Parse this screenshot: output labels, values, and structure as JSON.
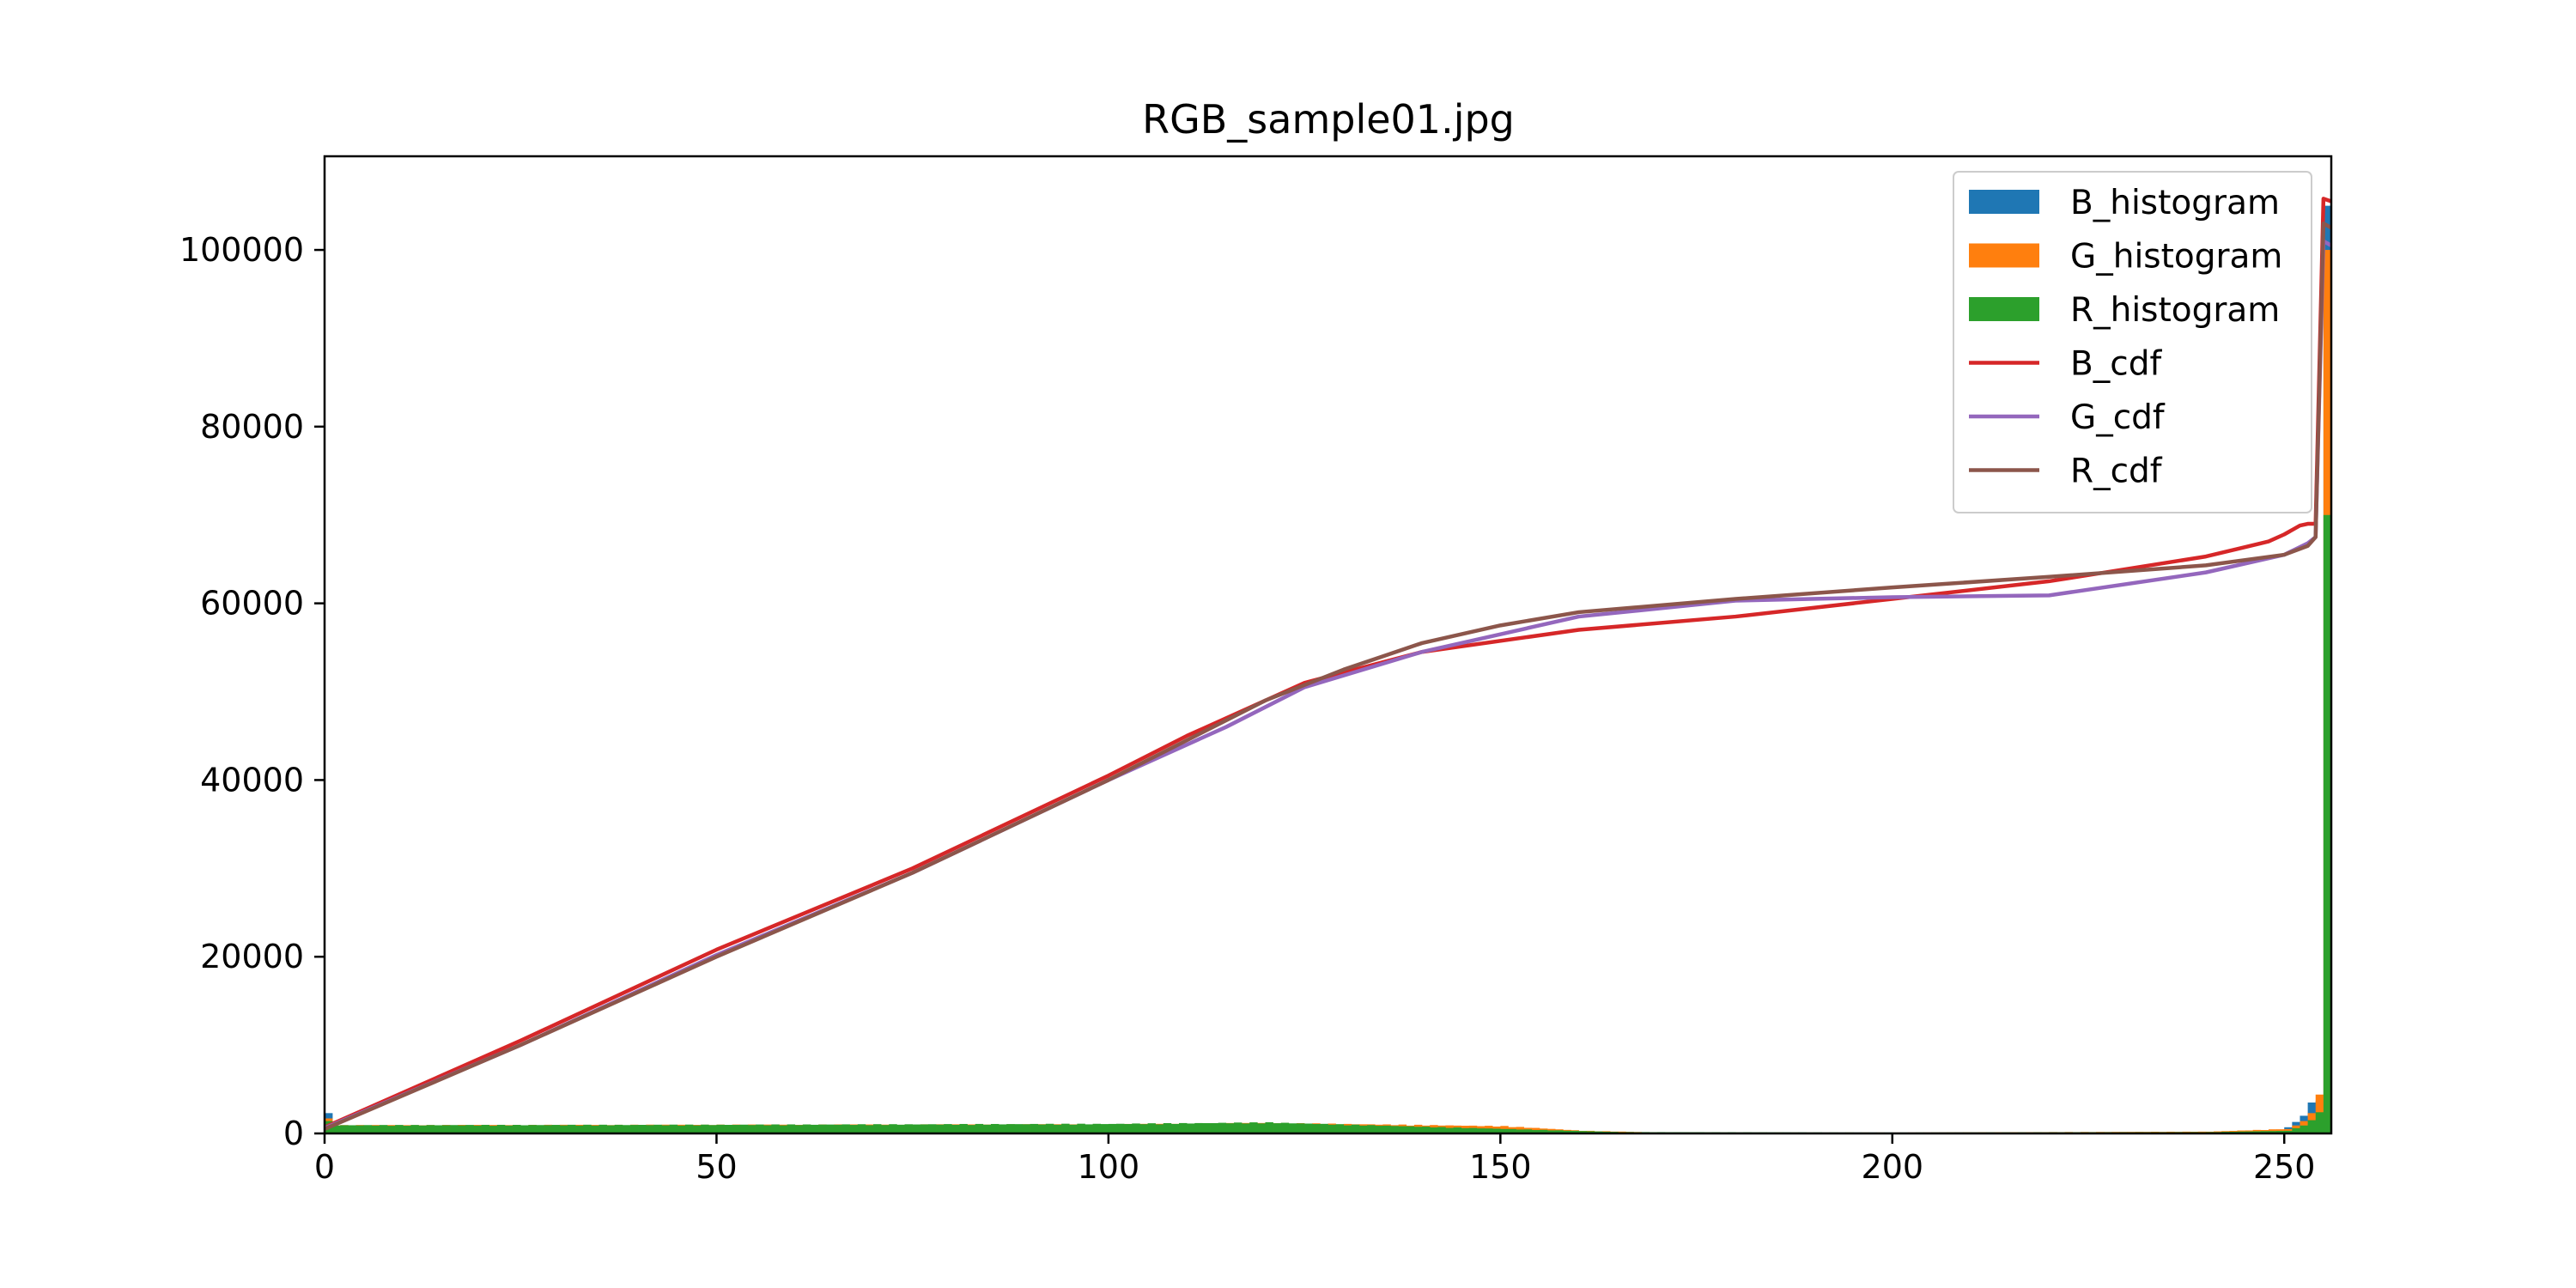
{
  "chart_data": {
    "type": "bar",
    "title": "RGB_sample01.jpg",
    "xlabel": "",
    "ylabel": "",
    "xlim": [
      0,
      256
    ],
    "ylim": [
      0,
      110600
    ],
    "xticks": [
      0,
      50,
      100,
      150,
      200,
      250
    ],
    "yticks": [
      0,
      20000,
      40000,
      60000,
      80000,
      100000
    ],
    "grid": false,
    "legend_position": "top-right",
    "legend": [
      {
        "label": "B_histogram",
        "kind": "bar",
        "color": "#1f77b4"
      },
      {
        "label": "G_histogram",
        "kind": "bar",
        "color": "#ff7f0e"
      },
      {
        "label": "R_histogram",
        "kind": "bar",
        "color": "#2ca02c"
      },
      {
        "label": "B_cdf",
        "kind": "line",
        "color": "#d62728"
      },
      {
        "label": "G_cdf",
        "kind": "line",
        "color": "#9467bd"
      },
      {
        "label": "R_cdf",
        "kind": "line",
        "color": "#8c564b"
      }
    ],
    "histograms": [
      {
        "name": "B_histogram",
        "color": "#1f77b4",
        "points": [
          [
            0,
            2300
          ],
          [
            1,
            800
          ],
          [
            50,
            850
          ],
          [
            100,
            900
          ],
          [
            120,
            1000
          ],
          [
            150,
            400
          ],
          [
            165,
            100
          ],
          [
            200,
            100
          ],
          [
            240,
            150
          ],
          [
            249,
            200
          ],
          [
            250,
            700
          ],
          [
            251,
            1300
          ],
          [
            252,
            2000
          ],
          [
            253,
            3500
          ],
          [
            254,
            3700
          ],
          [
            255,
            105000
          ]
        ]
      },
      {
        "name": "G_histogram",
        "color": "#ff7f0e",
        "points": [
          [
            0,
            1700
          ],
          [
            1,
            900
          ],
          [
            50,
            950
          ],
          [
            100,
            1000
          ],
          [
            120,
            1150
          ],
          [
            150,
            800
          ],
          [
            160,
            300
          ],
          [
            170,
            100
          ],
          [
            200,
            100
          ],
          [
            240,
            200
          ],
          [
            250,
            500
          ],
          [
            251,
            900
          ],
          [
            252,
            1400
          ],
          [
            253,
            2300
          ],
          [
            254,
            4400
          ],
          [
            255,
            100000
          ]
        ]
      },
      {
        "name": "R_histogram",
        "color": "#2ca02c",
        "points": [
          [
            0,
            1400
          ],
          [
            1,
            900
          ],
          [
            50,
            950
          ],
          [
            100,
            1050
          ],
          [
            120,
            1200
          ],
          [
            150,
            500
          ],
          [
            165,
            150
          ],
          [
            200,
            100
          ],
          [
            240,
            150
          ],
          [
            250,
            300
          ],
          [
            251,
            600
          ],
          [
            252,
            900
          ],
          [
            253,
            1500
          ],
          [
            254,
            2400
          ],
          [
            255,
            70000
          ]
        ]
      }
    ],
    "series": [
      {
        "name": "B_cdf",
        "color": "#d62728",
        "points": [
          [
            0,
            700
          ],
          [
            25,
            10500
          ],
          [
            50,
            20800
          ],
          [
            75,
            30000
          ],
          [
            100,
            40500
          ],
          [
            110,
            45000
          ],
          [
            125,
            51000
          ],
          [
            140,
            54500
          ],
          [
            160,
            57000
          ],
          [
            180,
            58500
          ],
          [
            200,
            60500
          ],
          [
            220,
            62500
          ],
          [
            240,
            65300
          ],
          [
            248,
            67000
          ],
          [
            250,
            67800
          ],
          [
            252,
            68800
          ],
          [
            253,
            69000
          ],
          [
            254,
            69000
          ],
          [
            255,
            105800
          ],
          [
            256,
            105500
          ]
        ]
      },
      {
        "name": "G_cdf",
        "color": "#9467bd",
        "points": [
          [
            0,
            600
          ],
          [
            25,
            10000
          ],
          [
            50,
            20200
          ],
          [
            75,
            29500
          ],
          [
            100,
            40000
          ],
          [
            115,
            46000
          ],
          [
            125,
            50500
          ],
          [
            140,
            54500
          ],
          [
            150,
            56500
          ],
          [
            160,
            58500
          ],
          [
            180,
            60300
          ],
          [
            200,
            60700
          ],
          [
            220,
            60900
          ],
          [
            240,
            63500
          ],
          [
            250,
            65500
          ],
          [
            253,
            66800
          ],
          [
            254,
            67500
          ],
          [
            255,
            101000
          ],
          [
            256,
            100500
          ]
        ]
      },
      {
        "name": "R_cdf",
        "color": "#8c564b",
        "points": [
          [
            0,
            500
          ],
          [
            25,
            10000
          ],
          [
            50,
            20000
          ],
          [
            75,
            29500
          ],
          [
            100,
            40000
          ],
          [
            120,
            49000
          ],
          [
            130,
            52500
          ],
          [
            140,
            55500
          ],
          [
            150,
            57500
          ],
          [
            160,
            59000
          ],
          [
            180,
            60500
          ],
          [
            200,
            61800
          ],
          [
            220,
            63000
          ],
          [
            240,
            64300
          ],
          [
            250,
            65500
          ],
          [
            253,
            66500
          ],
          [
            254,
            67500
          ],
          [
            255,
            103000
          ],
          [
            256,
            102500
          ]
        ]
      }
    ]
  }
}
